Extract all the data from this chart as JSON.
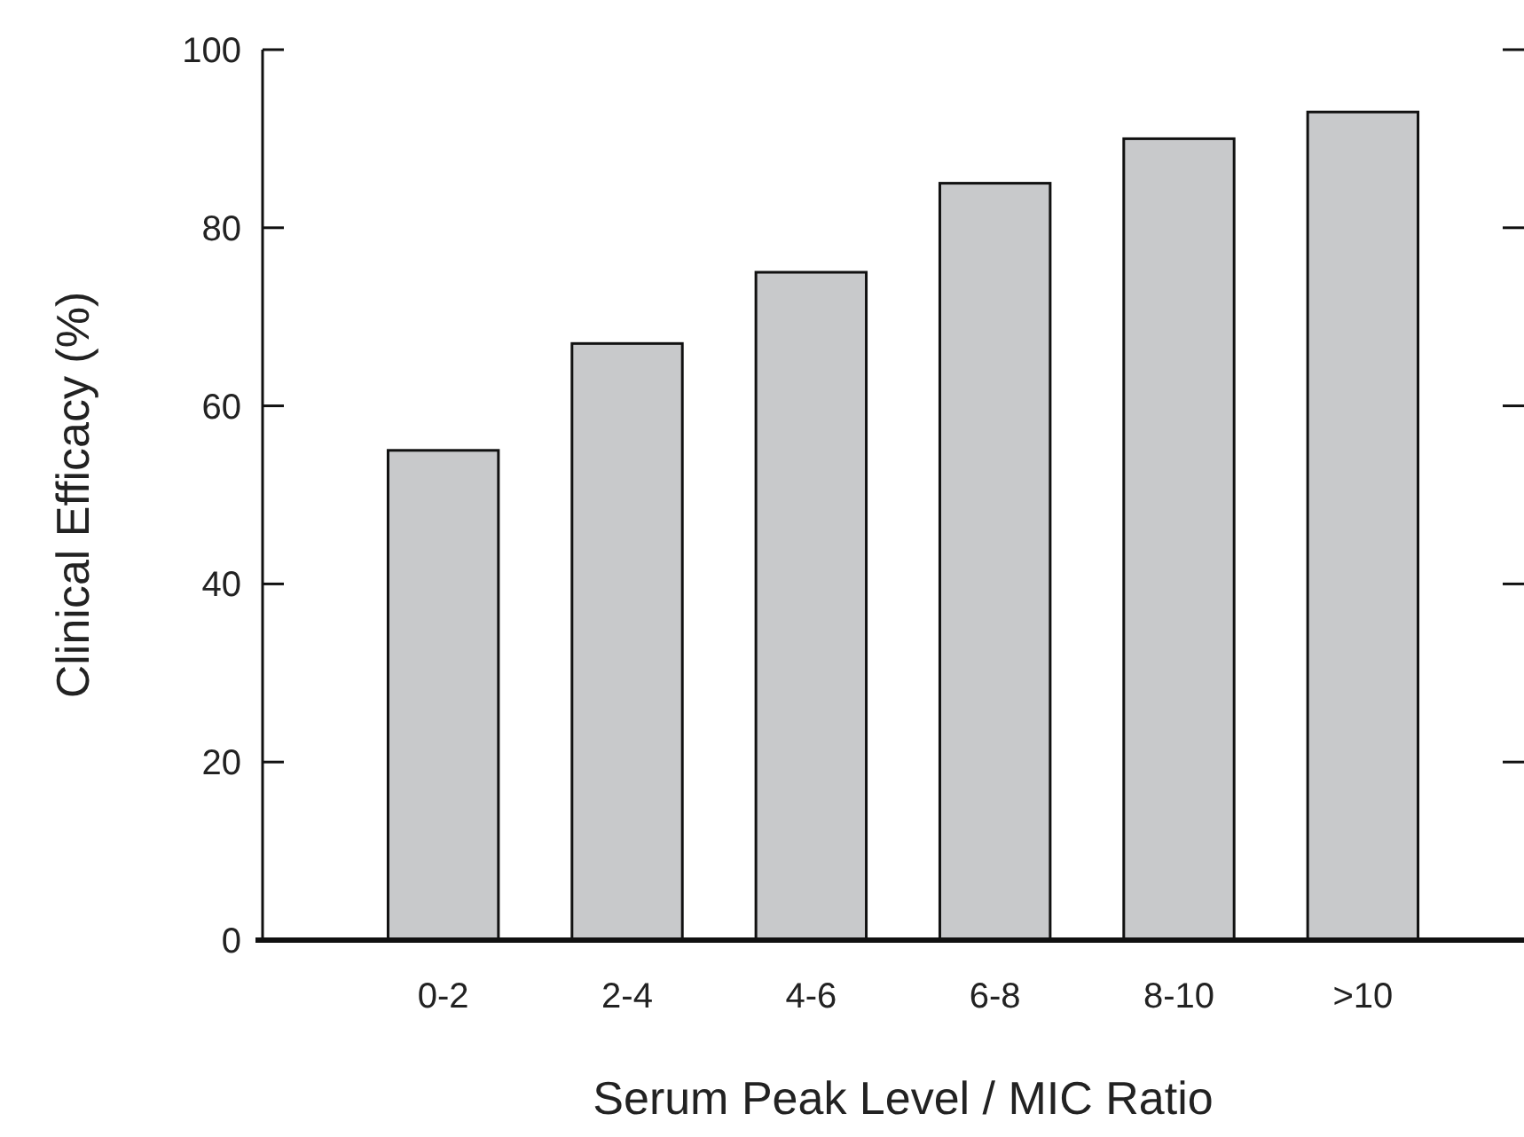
{
  "chart_data": {
    "type": "bar",
    "xlabel": "Serum Peak Level / MIC Ratio",
    "ylabel": "Clinical Efficacy (%)",
    "categories": [
      "0-2",
      "2-4",
      "4-6",
      "6-8",
      "8-10",
      ">10"
    ],
    "values": [
      55,
      67,
      75,
      85,
      90,
      93
    ],
    "color": "#c8c9cb",
    "ylim": [
      0,
      100
    ],
    "yticks": [
      0,
      20,
      40,
      60,
      80,
      100
    ],
    "grid": false
  }
}
